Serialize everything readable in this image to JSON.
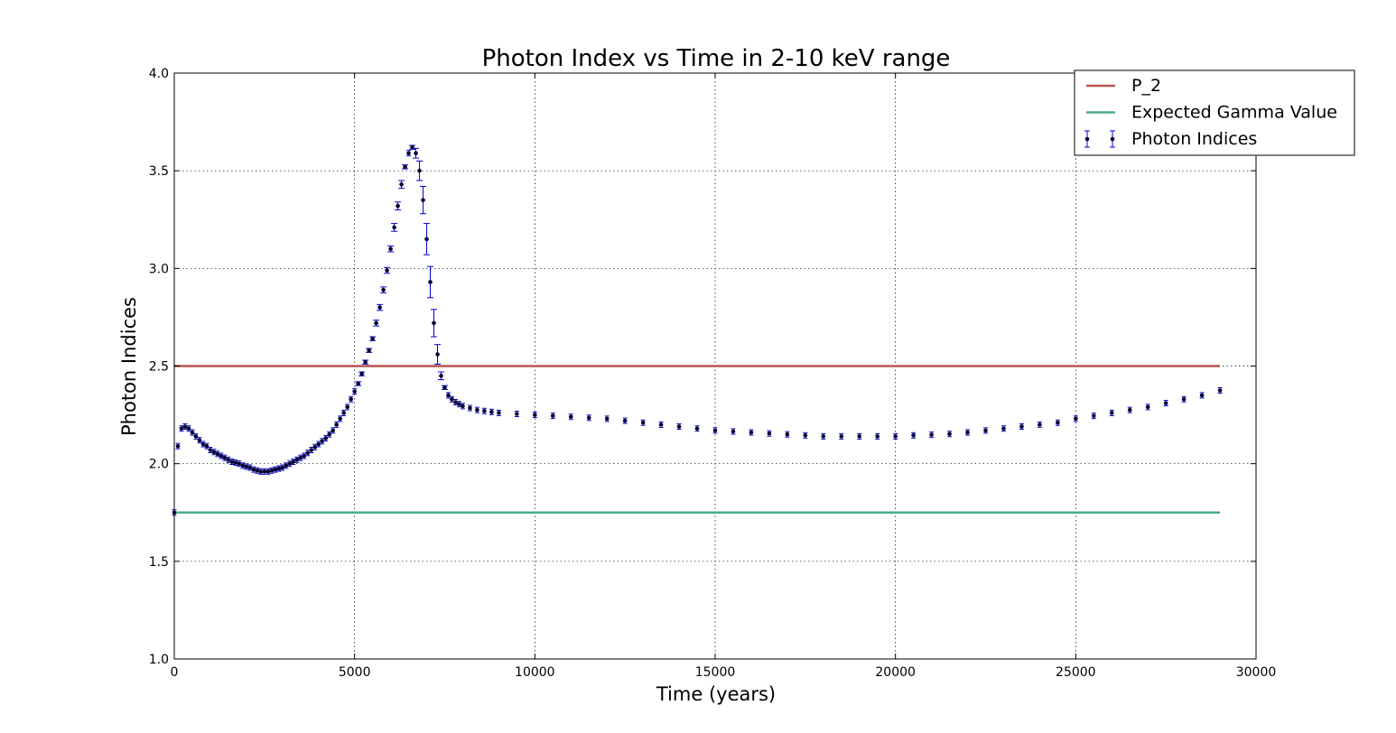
{
  "chart_data": {
    "type": "scatter",
    "title": "Photon Index vs Time in 2-10 keV range",
    "xlabel": "Time (years)",
    "ylabel": "Photon Indices",
    "xlim": [
      0,
      30000
    ],
    "ylim": [
      1.0,
      4.0
    ],
    "x_ticks": [
      0,
      5000,
      10000,
      15000,
      20000,
      25000,
      30000
    ],
    "y_ticks": [
      "1.0",
      "1.5",
      "2.0",
      "2.5",
      "3.0",
      "3.5",
      "4.0"
    ],
    "grid": true,
    "legend_position": "top-right",
    "hlines": [
      {
        "name": "P_2",
        "value": 2.5,
        "x_range": [
          0,
          29000
        ],
        "color": "#b85450"
      },
      {
        "name": "Expected Gamma Value",
        "value": 1.75,
        "x_range": [
          0,
          29000
        ],
        "color": "#4dac8a"
      }
    ],
    "series": [
      {
        "name": "Photon Indices",
        "marker_color": "#000033",
        "errorbar_color": "#0000cc",
        "points": [
          [
            0,
            1.75,
            0.005
          ],
          [
            100,
            2.09,
            0.005
          ],
          [
            200,
            2.18,
            0.005
          ],
          [
            300,
            2.19,
            0.005
          ],
          [
            400,
            2.18,
            0.005
          ],
          [
            500,
            2.16,
            0.005
          ],
          [
            600,
            2.14,
            0.005
          ],
          [
            700,
            2.12,
            0.005
          ],
          [
            800,
            2.1,
            0.005
          ],
          [
            900,
            2.09,
            0.005
          ],
          [
            1000,
            2.07,
            0.005
          ],
          [
            1100,
            2.06,
            0.005
          ],
          [
            1200,
            2.05,
            0.005
          ],
          [
            1300,
            2.04,
            0.005
          ],
          [
            1400,
            2.03,
            0.005
          ],
          [
            1500,
            2.02,
            0.005
          ],
          [
            1600,
            2.01,
            0.005
          ],
          [
            1700,
            2.005,
            0.005
          ],
          [
            1800,
            2.0,
            0.005
          ],
          [
            1900,
            1.99,
            0.005
          ],
          [
            2000,
            1.985,
            0.005
          ],
          [
            2100,
            1.98,
            0.005
          ],
          [
            2200,
            1.97,
            0.005
          ],
          [
            2300,
            1.965,
            0.005
          ],
          [
            2400,
            1.96,
            0.005
          ],
          [
            2500,
            1.96,
            0.005
          ],
          [
            2600,
            1.96,
            0.005
          ],
          [
            2700,
            1.965,
            0.005
          ],
          [
            2800,
            1.97,
            0.005
          ],
          [
            2900,
            1.975,
            0.005
          ],
          [
            3000,
            1.98,
            0.005
          ],
          [
            3100,
            1.99,
            0.005
          ],
          [
            3200,
            2.0,
            0.005
          ],
          [
            3300,
            2.01,
            0.005
          ],
          [
            3400,
            2.02,
            0.005
          ],
          [
            3500,
            2.03,
            0.005
          ],
          [
            3600,
            2.04,
            0.005
          ],
          [
            3700,
            2.055,
            0.005
          ],
          [
            3800,
            2.07,
            0.005
          ],
          [
            3900,
            2.085,
            0.005
          ],
          [
            4000,
            2.1,
            0.005
          ],
          [
            4100,
            2.115,
            0.005
          ],
          [
            4200,
            2.13,
            0.005
          ],
          [
            4300,
            2.15,
            0.005
          ],
          [
            4400,
            2.17,
            0.005
          ],
          [
            4500,
            2.2,
            0.005
          ],
          [
            4600,
            2.23,
            0.005
          ],
          [
            4700,
            2.26,
            0.005
          ],
          [
            4800,
            2.29,
            0.005
          ],
          [
            4900,
            2.33,
            0.005
          ],
          [
            5000,
            2.37,
            0.005
          ],
          [
            5100,
            2.41,
            0.01
          ],
          [
            5200,
            2.46,
            0.01
          ],
          [
            5300,
            2.52,
            0.01
          ],
          [
            5400,
            2.58,
            0.01
          ],
          [
            5500,
            2.64,
            0.01
          ],
          [
            5600,
            2.72,
            0.015
          ],
          [
            5700,
            2.8,
            0.015
          ],
          [
            5800,
            2.89,
            0.015
          ],
          [
            5900,
            2.99,
            0.015
          ],
          [
            6000,
            3.1,
            0.015
          ],
          [
            6100,
            3.21,
            0.02
          ],
          [
            6200,
            3.32,
            0.02
          ],
          [
            6300,
            3.43,
            0.02
          ],
          [
            6400,
            3.52,
            0.01
          ],
          [
            6500,
            3.59,
            0.005
          ],
          [
            6600,
            3.62,
            0.01
          ],
          [
            6700,
            3.59,
            0.025
          ],
          [
            6800,
            3.5,
            0.05
          ],
          [
            6900,
            3.35,
            0.07
          ],
          [
            7000,
            3.15,
            0.08
          ],
          [
            7100,
            2.93,
            0.08
          ],
          [
            7200,
            2.72,
            0.07
          ],
          [
            7300,
            2.56,
            0.05
          ],
          [
            7400,
            2.45,
            0.02
          ],
          [
            7500,
            2.39,
            0.01
          ],
          [
            7600,
            2.35,
            0.005
          ],
          [
            7700,
            2.33,
            0.005
          ],
          [
            7800,
            2.315,
            0.005
          ],
          [
            7900,
            2.305,
            0.005
          ],
          [
            8000,
            2.295,
            0.005
          ],
          [
            8200,
            2.285,
            0.005
          ],
          [
            8400,
            2.275,
            0.005
          ],
          [
            8600,
            2.27,
            0.005
          ],
          [
            8800,
            2.265,
            0.005
          ],
          [
            9000,
            2.26,
            0.005
          ],
          [
            9500,
            2.255,
            0.005
          ],
          [
            10000,
            2.25,
            0.005
          ],
          [
            10500,
            2.245,
            0.005
          ],
          [
            11000,
            2.24,
            0.005
          ],
          [
            11500,
            2.235,
            0.005
          ],
          [
            12000,
            2.23,
            0.005
          ],
          [
            12500,
            2.22,
            0.005
          ],
          [
            13000,
            2.21,
            0.005
          ],
          [
            13500,
            2.2,
            0.005
          ],
          [
            14000,
            2.19,
            0.005
          ],
          [
            14500,
            2.18,
            0.005
          ],
          [
            15000,
            2.17,
            0.005
          ],
          [
            15500,
            2.165,
            0.005
          ],
          [
            16000,
            2.16,
            0.005
          ],
          [
            16500,
            2.155,
            0.005
          ],
          [
            17000,
            2.15,
            0.005
          ],
          [
            17500,
            2.145,
            0.005
          ],
          [
            18000,
            2.14,
            0.005
          ],
          [
            18500,
            2.14,
            0.005
          ],
          [
            19000,
            2.14,
            0.005
          ],
          [
            19500,
            2.14,
            0.005
          ],
          [
            20000,
            2.14,
            0.005
          ],
          [
            20500,
            2.145,
            0.005
          ],
          [
            21000,
            2.148,
            0.005
          ],
          [
            21500,
            2.152,
            0.005
          ],
          [
            22000,
            2.16,
            0.005
          ],
          [
            22500,
            2.17,
            0.005
          ],
          [
            23000,
            2.18,
            0.005
          ],
          [
            23500,
            2.19,
            0.005
          ],
          [
            24000,
            2.2,
            0.005
          ],
          [
            24500,
            2.21,
            0.005
          ],
          [
            25000,
            2.23,
            0.005
          ],
          [
            25500,
            2.245,
            0.005
          ],
          [
            26000,
            2.26,
            0.005
          ],
          [
            26500,
            2.275,
            0.005
          ],
          [
            27000,
            2.29,
            0.005
          ],
          [
            27500,
            2.31,
            0.005
          ],
          [
            28000,
            2.33,
            0.005
          ],
          [
            28500,
            2.35,
            0.005
          ],
          [
            29000,
            2.375,
            0.005
          ]
        ]
      }
    ]
  }
}
